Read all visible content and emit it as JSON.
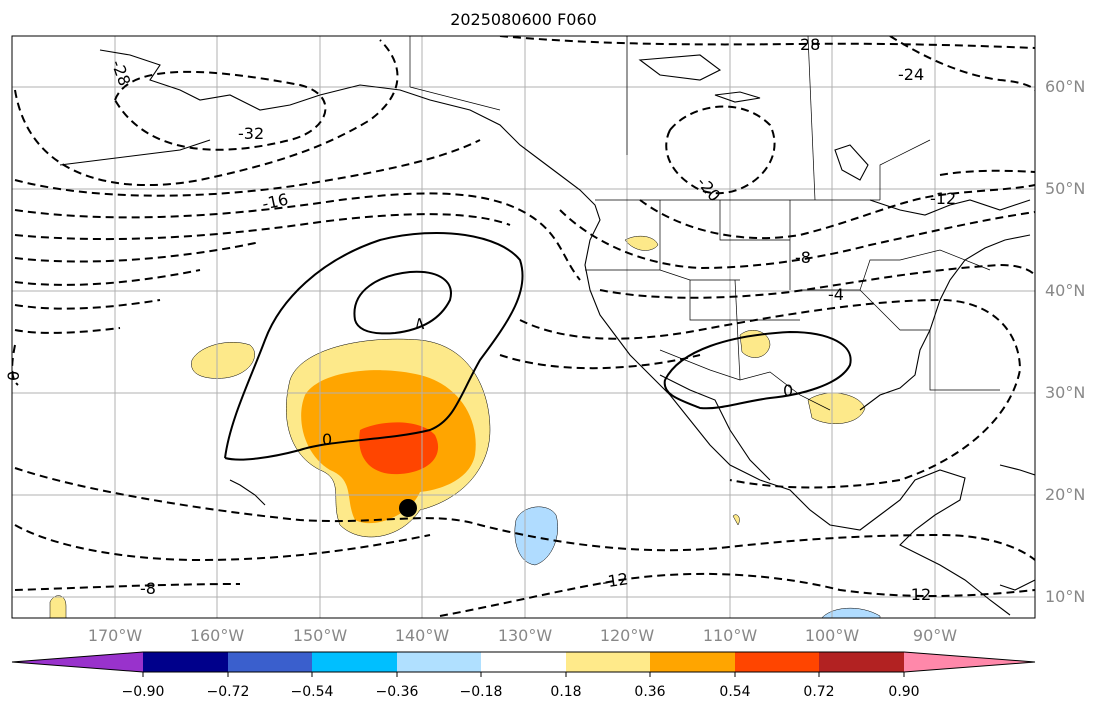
{
  "title": "2025080600 F060",
  "map": {
    "latitude_labels": [
      "60°N",
      "50°N",
      "40°N",
      "30°N",
      "20°N",
      "10°N"
    ],
    "longitude_labels": [
      "170°W",
      "160°W",
      "150°W",
      "140°W",
      "130°W",
      "120°W",
      "110°W",
      "100°W",
      "90°W"
    ],
    "contour_labels": [
      "28",
      "-28",
      "-24",
      "-32",
      "-20",
      "-16",
      "-12",
      "-8",
      "-4",
      "4",
      "0",
      "0",
      "0",
      "-8",
      "-12",
      "-12"
    ],
    "marker": "black-dot",
    "colors": {
      "land_outline": "#000000",
      "grid": "#b0b0b0",
      "positive_low": "#fde98a",
      "positive_mid": "#ffa500",
      "positive_high": "#ff4500",
      "negative_low": "#b0dcff"
    }
  },
  "colorbar": {
    "ticks": [
      "−0.90",
      "−0.72",
      "−0.54",
      "−0.36",
      "−0.18",
      "0.18",
      "0.36",
      "0.54",
      "0.72",
      "0.90"
    ],
    "colors": [
      "#9932cc",
      "#00008b",
      "#3a5fcd",
      "#00bfff",
      "#b0e0ff",
      "#ffffff",
      "#ffea8a",
      "#ffa500",
      "#ff4500",
      "#b22222",
      "#ff88aa"
    ]
  }
}
